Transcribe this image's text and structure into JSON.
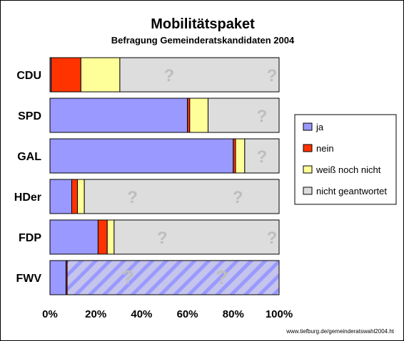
{
  "chart_data": {
    "type": "bar",
    "stacked": "percent",
    "orientation": "horizontal",
    "title": "Mobilitätspaket",
    "subtitle": "Befragung Gemeinderatskandidaten 2004",
    "categories": [
      "CDU",
      "SPD",
      "GAL",
      "HDer",
      "FDP",
      "FWV"
    ],
    "series": [
      {
        "name": "ja",
        "color": "#9999ff",
        "values": [
          0.5,
          60,
          80,
          9.5,
          21,
          7
        ]
      },
      {
        "name": "nein",
        "color": "#ff3300",
        "values": [
          13,
          1,
          1,
          2.5,
          4,
          0.5
        ]
      },
      {
        "name": "weiß noch nicht",
        "color": "#ffff99",
        "values": [
          17,
          8,
          4,
          3,
          3,
          0
        ]
      },
      {
        "name": "nicht geantwortet",
        "color": "#dddddd",
        "values": [
          69.5,
          31,
          15,
          85,
          72,
          92.5
        ]
      }
    ],
    "xlim": [
      0,
      100
    ],
    "xticks": [
      "0%",
      "20%",
      "40%",
      "60%",
      "80%",
      "100%"
    ],
    "xtick_values": [
      0,
      20,
      40,
      60,
      80,
      100
    ],
    "legend_position": "right",
    "grid": false,
    "unanswered_marker": "?",
    "source_note": "www.tiefburg.de/gemeinderatswahl2004.ht"
  }
}
